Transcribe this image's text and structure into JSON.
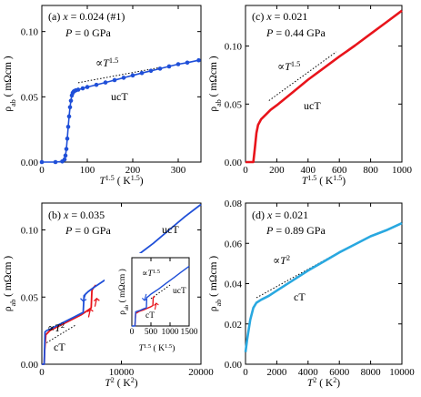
{
  "chart_data": [
    {
      "type": "line",
      "panel": "a",
      "annotations": {
        "header_parts": [
          "(a) ",
          "x",
          " = 0.024 (#1)"
        ],
        "pressure_parts": [
          "P",
          " = 0 GPa"
        ],
        "power_law_parts": [
          "∝",
          "T",
          "1.5"
        ],
        "phase": "ucT"
      },
      "xlabel_parts": [
        "T",
        "1.5",
        " ( K",
        "1.5",
        ")"
      ],
      "ylabel_parts": [
        "ρ",
        "ab",
        " ( mΩcm )"
      ],
      "x_ticks": [
        0,
        100,
        200,
        300
      ],
      "y_ticks": [
        "0.00",
        "0.05",
        "0.10"
      ],
      "xlim": [
        0,
        350
      ],
      "ylim": [
        0,
        0.12
      ],
      "series": [
        {
          "color": "#1f4fd8",
          "style": "line-with-dots",
          "x": [
            0,
            30,
            45,
            50,
            52,
            54,
            56,
            58,
            60,
            62,
            64,
            66,
            68,
            70,
            72,
            75,
            80,
            90,
            100,
            120,
            140,
            160,
            180,
            200,
            220,
            240,
            260,
            280,
            300,
            320,
            345
          ],
          "y": [
            0.0,
            0.0,
            0.0005,
            0.002,
            0.005,
            0.01,
            0.018,
            0.027,
            0.035,
            0.042,
            0.047,
            0.051,
            0.053,
            0.054,
            0.0545,
            0.055,
            0.0555,
            0.0565,
            0.0575,
            0.0592,
            0.061,
            0.0628,
            0.0646,
            0.0664,
            0.0682,
            0.0699,
            0.0716,
            0.0733,
            0.075,
            0.0762,
            0.078
          ]
        }
      ],
      "fit_line": {
        "x": [
          80,
          260
        ],
        "y": [
          0.0608,
          0.0725
        ]
      }
    },
    {
      "type": "line",
      "panel": "c",
      "annotations": {
        "header_parts": [
          "(c) ",
          "x",
          " = 0.021"
        ],
        "pressure_parts": [
          "P",
          " = 0.44 GPa"
        ],
        "power_law_parts": [
          "∝",
          "T",
          "1.5"
        ],
        "phase": "ucT"
      },
      "xlabel_parts": [
        "T",
        "1.5",
        " ( K",
        "1.5",
        ")"
      ],
      "ylabel_parts": [
        "ρ",
        "ab",
        " ( mΩcm )"
      ],
      "x_ticks": [
        0,
        200,
        400,
        600,
        800,
        1000
      ],
      "y_ticks": [
        "0.00",
        "0.05",
        "0.10"
      ],
      "xlim": [
        0,
        1000
      ],
      "ylim": [
        0,
        0.135
      ],
      "series": [
        {
          "color": "#e8141b",
          "style": "line",
          "x": [
            0,
            50,
            60,
            70,
            80,
            100,
            130,
            160,
            200,
            300,
            400,
            500,
            600,
            700,
            800,
            900,
            1000
          ],
          "y": [
            0.0,
            0.0,
            0.012,
            0.025,
            0.032,
            0.037,
            0.041,
            0.045,
            0.049,
            0.06,
            0.071,
            0.081,
            0.091,
            0.1005,
            0.1105,
            0.1205,
            0.1305
          ]
        }
      ],
      "fit_line": {
        "x": [
          150,
          580
        ],
        "y": [
          0.053,
          0.095
        ]
      }
    },
    {
      "type": "line",
      "panel": "b",
      "annotations": {
        "header_parts": [
          "(b) ",
          "x",
          " = 0.035"
        ],
        "pressure_parts": [
          "P",
          " = 0 GPa"
        ],
        "power_law_parts": [
          "∝",
          "T",
          "2"
        ],
        "phase_upper": "ucT",
        "phase_lower": "cT"
      },
      "xlabel_parts": [
        "T",
        "2",
        " ( K",
        "2",
        ")"
      ],
      "ylabel_parts": [
        "ρ",
        "ab",
        " ( mΩcm )"
      ],
      "x_ticks": [
        0,
        10000,
        20000
      ],
      "y_ticks": [
        "0.00",
        "0.05",
        "0.10"
      ],
      "xlim": [
        0,
        20000
      ],
      "ylim": [
        0,
        0.12
      ],
      "series": [
        {
          "name": "cooling",
          "color": "#1f4fd8",
          "x": [
            0,
            300,
            400,
            600,
            1000,
            2000,
            3000,
            4000,
            5000,
            5200,
            5300,
            5800,
            6500,
            8000,
            10000,
            12000,
            14000,
            16000,
            18000,
            20000
          ],
          "y": [
            0.0,
            0.0,
            0.024,
            0.025,
            0.026,
            0.029,
            0.032,
            0.035,
            0.038,
            0.0385,
            0.051,
            0.054,
            0.057,
            0.063,
            0.072,
            0.081,
            0.09,
            0.1,
            0.11,
            0.119
          ]
        },
        {
          "name": "warming",
          "color": "#e8141b",
          "x": [
            0,
            300,
            350,
            500,
            1000,
            2000,
            3000,
            4000,
            5000,
            6000,
            6200,
            6300,
            6500,
            6800
          ],
          "y": [
            0.0,
            0.0,
            0.01,
            0.022,
            0.025,
            0.028,
            0.031,
            0.034,
            0.037,
            0.041,
            0.042,
            0.055,
            0.057,
            0.059
          ]
        }
      ],
      "fit_line": {
        "x": [
          600,
          4200
        ],
        "y": [
          0.016,
          0.029
        ]
      },
      "inset": {
        "annotations": {
          "power_law_parts": [
            "∝",
            "T",
            "1.5"
          ],
          "phase_upper": "ucT",
          "phase_lower": "cT"
        },
        "xlabel_parts": [
          "T",
          "1.5",
          " ( K",
          "1.5",
          ")"
        ],
        "ylabel_parts": [
          "ρ",
          "ab",
          " ( mΩcm )"
        ],
        "x_ticks": [
          0,
          500,
          1000,
          1500
        ],
        "xlim": [
          0,
          1500
        ],
        "ylim": [
          0,
          0.12
        ],
        "series": [
          {
            "name": "cooling",
            "color": "#1f4fd8",
            "x": [
              0,
              80,
              100,
              200,
              300,
              380,
              390,
              450,
              500,
              700,
              900,
              1100,
              1300,
              1500
            ],
            "y": [
              0.0,
              0.0,
              0.025,
              0.027,
              0.03,
              0.032,
              0.05,
              0.053,
              0.056,
              0.065,
              0.075,
              0.085,
              0.095,
              0.105
            ]
          },
          {
            "name": "warming",
            "color": "#e8141b",
            "x": [
              80,
              100,
              200,
              300,
              400,
              500,
              550,
              560,
              600
            ],
            "y": [
              0.0,
              0.022,
              0.026,
              0.028,
              0.031,
              0.034,
              0.036,
              0.05,
              0.052
            ]
          }
        ],
        "fit_line": {
          "x": [
            500,
            1000
          ],
          "y": [
            0.048,
            0.072
          ]
        }
      }
    },
    {
      "type": "line",
      "panel": "d",
      "annotations": {
        "header_parts": [
          "(d) ",
          "x",
          " = 0.021"
        ],
        "pressure_parts": [
          "P",
          " = 0.89 GPa"
        ],
        "power_law_parts": [
          "∝",
          "T",
          "2"
        ],
        "phase": "cT"
      },
      "xlabel_parts": [
        "T",
        "2",
        " ( K",
        "2",
        ")"
      ],
      "ylabel_parts": [
        "ρ",
        "ab",
        " ( mΩcm )"
      ],
      "x_ticks": [
        0,
        2000,
        4000,
        6000,
        8000,
        10000
      ],
      "y_ticks": [
        "0.00",
        "0.02",
        "0.04",
        "0.06",
        "0.08"
      ],
      "xlim": [
        0,
        10000
      ],
      "ylim": [
        0,
        0.08
      ],
      "series": [
        {
          "color": "#29a8e0",
          "style": "line",
          "x": [
            0,
            100,
            300,
            500,
            700,
            1000,
            1500,
            2000,
            3000,
            4000,
            5000,
            6000,
            7000,
            8000,
            9000,
            10000
          ],
          "y": [
            0.006,
            0.012,
            0.022,
            0.028,
            0.0305,
            0.032,
            0.034,
            0.0365,
            0.0415,
            0.0465,
            0.051,
            0.0555,
            0.0595,
            0.0635,
            0.0665,
            0.07
          ]
        }
      ],
      "fit_line": {
        "x": [
          700,
          5600
        ],
        "y": [
          0.033,
          0.054
        ]
      }
    }
  ]
}
